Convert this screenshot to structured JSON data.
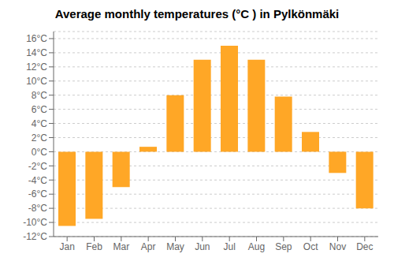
{
  "chart_data": {
    "type": "bar",
    "title": "Average monthly temperatures (°C ) in Pylkönmäki",
    "categories": [
      "Jan",
      "Feb",
      "Mar",
      "Apr",
      "May",
      "Jun",
      "Jul",
      "Aug",
      "Sep",
      "Oct",
      "Nov",
      "Dec"
    ],
    "values": [
      -10.5,
      -9.5,
      -5.0,
      0.7,
      8.0,
      13.0,
      15.0,
      13.0,
      7.8,
      2.8,
      -3.0,
      -8.0
    ],
    "color": "#FFA726",
    "ylim": [
      -12,
      17
    ],
    "yticks": [
      {
        "value": -12,
        "label": "-12°C"
      },
      {
        "value": -10,
        "label": "-10°C"
      },
      {
        "value": -8,
        "label": "-8°C"
      },
      {
        "value": -6,
        "label": "-6°C"
      },
      {
        "value": -4,
        "label": "-4°C"
      },
      {
        "value": -2,
        "label": "-2°C"
      },
      {
        "value": 0,
        "label": "0°C"
      },
      {
        "value": 2,
        "label": "2°C"
      },
      {
        "value": 4,
        "label": "4°C"
      },
      {
        "value": 6,
        "label": "6°C"
      },
      {
        "value": 8,
        "label": "8°C"
      },
      {
        "value": 10,
        "label": "10°C"
      },
      {
        "value": 12,
        "label": "12°C"
      },
      {
        "value": 14,
        "label": "14°C"
      },
      {
        "value": 16,
        "label": "16°C"
      }
    ],
    "grid": true
  }
}
